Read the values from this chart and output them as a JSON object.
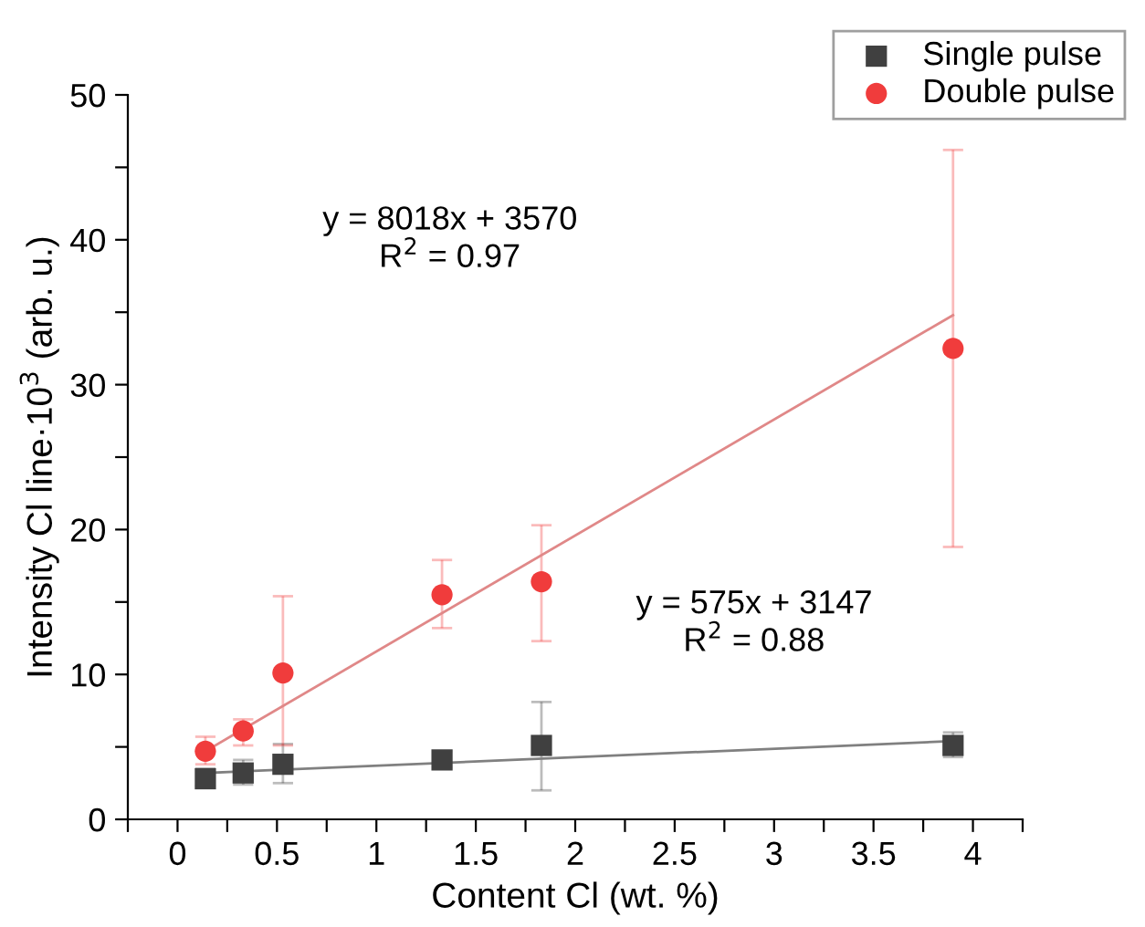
{
  "chart_data": {
    "type": "scatter",
    "xlabel": "Content Cl (wt. %)",
    "ylabel": "Intensity Cl line·10$^{3}$ (arb. u.)",
    "xlim": [
      -0.25,
      4.25
    ],
    "xticks": [
      {
        "value": -0.25,
        "label": null
      },
      0,
      {
        "value": 0.25,
        "label": null
      },
      0.5,
      {
        "value": 0.75,
        "label": null
      },
      1,
      {
        "value": 1.25,
        "label": null
      },
      1.5,
      {
        "value": 1.75,
        "label": null
      },
      2,
      {
        "value": 2.25,
        "label": null
      },
      2.5,
      {
        "value": 2.75,
        "label": null
      },
      3,
      {
        "value": 3.25,
        "label": null
      },
      3.5,
      {
        "value": 3.75,
        "label": null
      },
      4,
      {
        "value": 4.25,
        "label": null
      }
    ],
    "ylim": [
      0,
      50
    ],
    "yticks": [
      0,
      {
        "value": 5,
        "label": null
      },
      10,
      {
        "value": 15,
        "label": null
      },
      20,
      {
        "value": 25,
        "label": null
      },
      30,
      {
        "value": 35,
        "label": null
      },
      40,
      {
        "value": 45,
        "label": null
      },
      50
    ],
    "grid": false,
    "legend": "top right",
    "series": [
      {
        "name": "Single pulse",
        "marker": "square",
        "color": "#404040",
        "x": [
          0.14,
          0.33,
          0.53,
          1.33,
          1.83,
          3.9
        ],
        "values": [
          2.8,
          3.2,
          3.8,
          4.1,
          5.1,
          5.1
        ],
        "errors": [
          [
            2.3,
            3.5
          ],
          [
            2.4,
            4.1
          ],
          [
            2.5,
            5.2
          ],
          [
            3.6,
            4.7
          ],
          [
            2.0,
            8.1
          ],
          [
            4.3,
            6.0
          ]
        ]
      },
      {
        "name": "Double pulse",
        "marker": "circle",
        "color": "#f03c3c",
        "x": [
          0.14,
          0.33,
          0.53,
          1.33,
          1.83,
          3.9
        ],
        "values": [
          4.7,
          6.1,
          10.1,
          15.5,
          16.4,
          32.5
        ],
        "errors": [
          [
            3.8,
            5.7
          ],
          [
            5.1,
            6.9
          ],
          [
            5.1,
            15.4
          ],
          [
            13.2,
            17.9
          ],
          [
            12.3,
            20.3
          ],
          [
            18.8,
            46.2
          ]
        ]
      },
      {
        "type": "line",
        "color": "#e08888",
        "x": [
          0.14,
          3.9
        ],
        "values": [
          4.7,
          34.8
        ]
      },
      {
        "type": "line",
        "color": "#808080",
        "x": [
          0.14,
          3.9
        ],
        "values": [
          3.2,
          5.4
        ]
      }
    ],
    "annotations": [
      "y = 8018x + 3570\nR$^{2}$ = 0.97",
      "y = 575x + 3147\nR$^{2}$ = 0.88"
    ]
  }
}
